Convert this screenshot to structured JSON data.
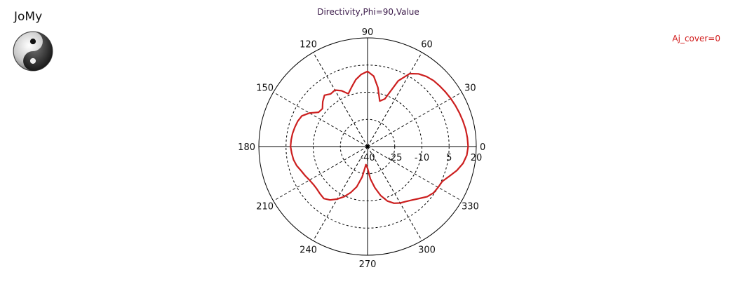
{
  "app": {
    "name": "JoMy"
  },
  "logo": {
    "icon": "yin-yang-icon"
  },
  "chart_data": {
    "type": "polar-line",
    "title": "Directivity,Phi=90,Value",
    "annotation": "Aj_cover=0",
    "radial_axis": {
      "range": [
        -40,
        20
      ],
      "ticks": [
        -40,
        -25,
        -10,
        5,
        20
      ]
    },
    "angular_axis": {
      "ticks_deg": [
        0,
        30,
        60,
        90,
        120,
        150,
        180,
        210,
        240,
        270,
        300,
        330
      ],
      "labels": [
        "0",
        "30",
        "60",
        "90",
        "120",
        "150",
        "180",
        "210",
        "240",
        "270",
        "300",
        "330"
      ]
    },
    "grid": true,
    "series": [
      {
        "color": "#cc1f1f",
        "theta": [
          0,
          5,
          10,
          15,
          20,
          25,
          30,
          35,
          40,
          45,
          50,
          55,
          60,
          65,
          70,
          75,
          80,
          85,
          90,
          95,
          100,
          105,
          110,
          115,
          120,
          125,
          130,
          135,
          140,
          145,
          150,
          155,
          160,
          165,
          170,
          175,
          180,
          185,
          190,
          195,
          200,
          205,
          210,
          215,
          220,
          225,
          230,
          235,
          240,
          245,
          250,
          255,
          260,
          265,
          270,
          275,
          280,
          285,
          290,
          295,
          300,
          305,
          310,
          315,
          320,
          325,
          330,
          335,
          340,
          345,
          350,
          355
        ],
        "r": [
          15.5,
          15.3,
          15.0,
          14.5,
          14.0,
          13.5,
          13.0,
          12.5,
          12.0,
          11.5,
          10.5,
          9.0,
          6.5,
          0.0,
          -12.0,
          -14.0,
          -7.0,
          -1.0,
          1.5,
          0.0,
          -2.5,
          -6.0,
          -9.0,
          -6.0,
          -4.0,
          -4.5,
          -3.0,
          -5.0,
          -7.5,
          -7.0,
          -3.0,
          0.0,
          1.0,
          1.5,
          2.0,
          2.3,
          2.5,
          2.0,
          1.5,
          0.5,
          -1.0,
          -2.0,
          -3.0,
          -3.5,
          -3.5,
          -3.0,
          -2.5,
          -4.0,
          -6.5,
          -9.5,
          -13.0,
          -17.0,
          -23.0,
          -30.0,
          -28.0,
          -22.0,
          -17.0,
          -12.0,
          -8.0,
          -5.5,
          -4.0,
          -3.0,
          -1.5,
          0.5,
          3.0,
          4.5,
          5.0,
          5.5,
          8.0,
          11.0,
          13.5,
          15.0
        ]
      }
    ]
  }
}
